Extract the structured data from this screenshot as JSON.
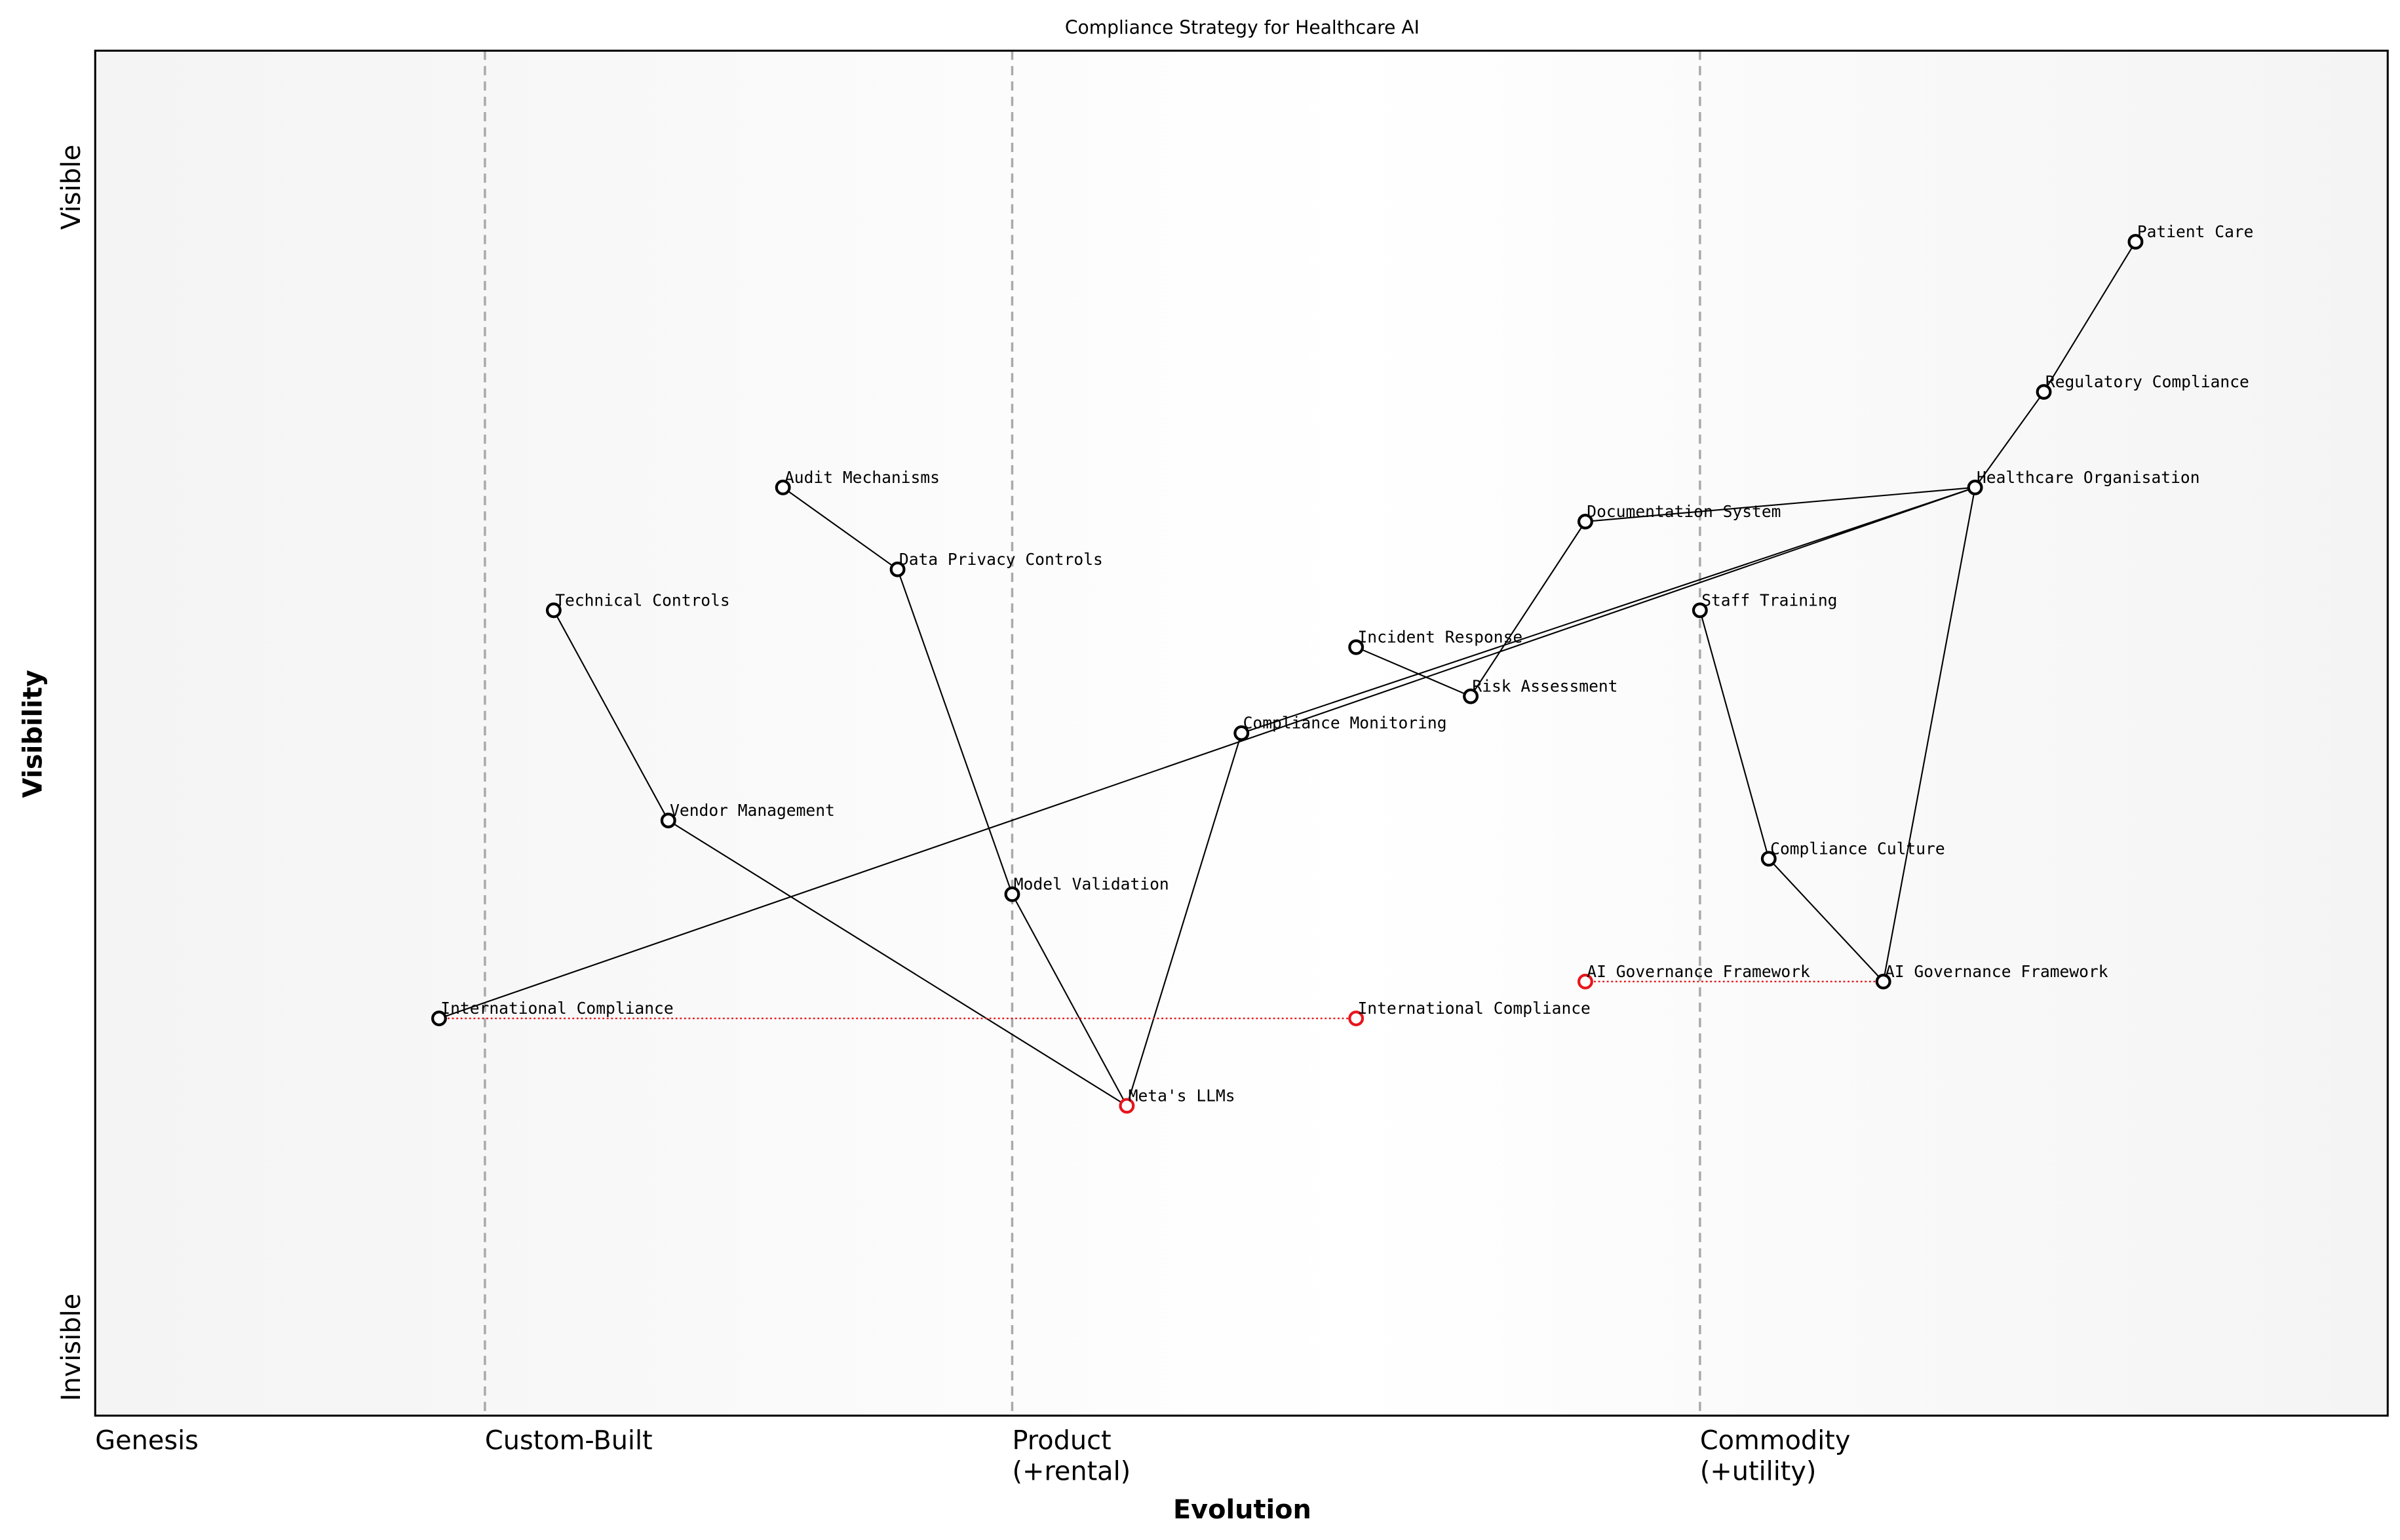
{
  "chart_data": {
    "type": "wardley-map",
    "title": "Compliance Strategy for Healthcare AI",
    "xlabel": "Evolution",
    "ylabel": "Visibility",
    "xlim": [
      0,
      1
    ],
    "ylim": [
      0,
      1
    ],
    "y_ticks": [
      {
        "label": "Visible",
        "value": 0.9
      },
      {
        "label": "Invisible",
        "value": 0.05
      }
    ],
    "stages": [
      {
        "label": "Genesis",
        "value": 0.0
      },
      {
        "label": "Custom-Built",
        "value": 0.17,
        "line": true
      },
      {
        "label": "Product",
        "sub": "(+rental)",
        "value": 0.4,
        "line": true
      },
      {
        "label": "Commodity",
        "sub": "(+utility)",
        "value": 0.7,
        "line": true
      }
    ],
    "colors": {
      "node": "#000000",
      "evolved": "#e8141b",
      "stage_line": "#aaaaaa"
    },
    "nodes": [
      {
        "id": "patient",
        "label": "Patient Care",
        "evolution": 0.89,
        "visibility": 0.86
      },
      {
        "id": "regulatory",
        "label": "Regulatory Compliance",
        "evolution": 0.85,
        "visibility": 0.75
      },
      {
        "id": "healthcare",
        "label": "Healthcare Organisation",
        "evolution": 0.82,
        "visibility": 0.68
      },
      {
        "id": "documentation",
        "label": "Documentation System",
        "evolution": 0.65,
        "visibility": 0.655
      },
      {
        "id": "audit",
        "label": "Audit Mechanisms",
        "evolution": 0.3,
        "visibility": 0.68
      },
      {
        "id": "privacy",
        "label": "Data Privacy Controls",
        "evolution": 0.35,
        "visibility": 0.62
      },
      {
        "id": "technical",
        "label": "Technical Controls",
        "evolution": 0.2,
        "visibility": 0.59
      },
      {
        "id": "staff",
        "label": "Staff Training",
        "evolution": 0.7,
        "visibility": 0.59
      },
      {
        "id": "incident",
        "label": "Incident Response",
        "evolution": 0.55,
        "visibility": 0.563
      },
      {
        "id": "risk",
        "label": "Risk Assessment",
        "evolution": 0.6,
        "visibility": 0.527
      },
      {
        "id": "monitoring",
        "label": "Compliance Monitoring",
        "evolution": 0.5,
        "visibility": 0.5
      },
      {
        "id": "vendor",
        "label": "Vendor Management",
        "evolution": 0.25,
        "visibility": 0.436
      },
      {
        "id": "culture",
        "label": "Compliance Culture",
        "evolution": 0.73,
        "visibility": 0.408
      },
      {
        "id": "validation",
        "label": "Model Validation",
        "evolution": 0.4,
        "visibility": 0.382
      },
      {
        "id": "aigov",
        "label": "AI Governance Framework",
        "evolution": 0.78,
        "visibility": 0.318
      },
      {
        "id": "intl",
        "label": "International Compliance",
        "evolution": 0.15,
        "visibility": 0.291
      },
      {
        "id": "meta",
        "label": "Meta's LLMs",
        "evolution": 0.45,
        "visibility": 0.227,
        "evolved": true
      },
      {
        "id": "aigov_evo",
        "label": "AI Governance Framework",
        "evolution": 0.65,
        "visibility": 0.318,
        "evolved": true
      },
      {
        "id": "intl_evo",
        "label": "International Compliance",
        "evolution": 0.55,
        "visibility": 0.291,
        "evolved": true
      }
    ],
    "links": [
      [
        "patient",
        "regulatory"
      ],
      [
        "regulatory",
        "healthcare"
      ],
      [
        "healthcare",
        "documentation"
      ],
      [
        "healthcare",
        "monitoring"
      ],
      [
        "healthcare",
        "intl"
      ],
      [
        "healthcare",
        "aigov"
      ],
      [
        "documentation",
        "risk"
      ],
      [
        "incident",
        "risk"
      ],
      [
        "staff",
        "culture"
      ],
      [
        "culture",
        "aigov"
      ],
      [
        "audit",
        "privacy"
      ],
      [
        "privacy",
        "validation"
      ],
      [
        "validation",
        "meta"
      ],
      [
        "monitoring",
        "meta"
      ],
      [
        "technical",
        "vendor"
      ],
      [
        "vendor",
        "meta"
      ]
    ],
    "evolve_links": [
      [
        "intl",
        "intl_evo"
      ],
      [
        "aigov_evo",
        "aigov"
      ]
    ]
  }
}
